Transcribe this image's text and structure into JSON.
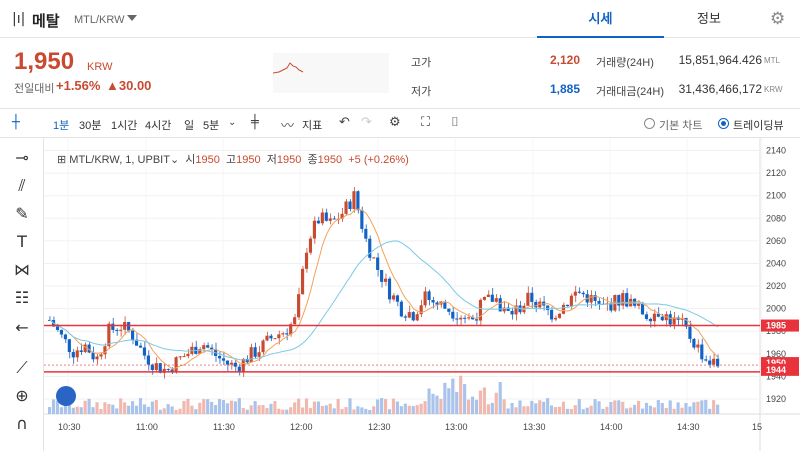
{
  "header": {
    "coin_name": "메탈",
    "pair": "MTL/KRW",
    "tabs": [
      "시세",
      "정보"
    ],
    "logo_glyph": "|ı|"
  },
  "price": {
    "current": "1,950",
    "unit": "KRW",
    "change_label": "전일대비",
    "change_pct": "+1.56%",
    "change_abs": "▲30.00"
  },
  "stats": {
    "high_label": "고가",
    "high": "2,120",
    "low_label": "저가",
    "low": "1,885",
    "volume_label": "거래량(24H)",
    "volume": "15,851,964.426",
    "volume_unit": "MTL",
    "value_label": "거래대금(24H)",
    "value": "31,436,466,172",
    "value_unit": "KRW"
  },
  "toolbar": {
    "intervals": [
      "1분",
      "30분",
      "1시간",
      "4시간",
      "일",
      "5분"
    ],
    "indicator_label": "지표",
    "basic_chart": "기본 차트",
    "tradingview": "트레이딩뷰"
  },
  "legend": {
    "symbol": "MTL/KRW, 1, UPBIT",
    "o_lbl": "시",
    "o": "1950",
    "h_lbl": "고",
    "h": "1950",
    "l_lbl": "저",
    "l": "1950",
    "c_lbl": "종",
    "c": "1950",
    "chg": "+5 (+0.26%)"
  },
  "colors": {
    "up": "#c84a31",
    "down": "#1261c4",
    "hline": "#e8323c"
  },
  "chart_data": {
    "type": "candlestick",
    "y_ticks": [
      1920,
      1940,
      1960,
      1980,
      2000,
      2020,
      2040,
      2060,
      2080,
      2100,
      2120,
      2140
    ],
    "x_ticks": [
      "10:30",
      "11:00",
      "11:30",
      "12:00",
      "12:30",
      "13:00",
      "13:30",
      "14:00",
      "14:30",
      "15"
    ],
    "price_tags": [
      {
        "value": "1985"
      },
      {
        "value": "1950"
      },
      {
        "value": "1944"
      }
    ],
    "hlines": [
      1985,
      1944
    ],
    "close_path": [
      1990,
      1975,
      1962,
      1968,
      1955,
      1980,
      1985,
      1978,
      1960,
      1950,
      1945,
      1955,
      1962,
      1970,
      1960,
      1952,
      1948,
      1958,
      1965,
      1975,
      1980,
      1990,
      2060,
      2080,
      2075,
      2085,
      2100,
      2060,
      2035,
      2015,
      2000,
      1995,
      2010,
      2005,
      2000,
      1995,
      1990,
      2005,
      2010,
      1995,
      2000,
      2010,
      2000,
      1995,
      2005,
      2015,
      2010,
      2000,
      2005,
      2010,
      2000,
      1995,
      1998,
      1990,
      1985,
      1970,
      1955,
      1950
    ]
  }
}
